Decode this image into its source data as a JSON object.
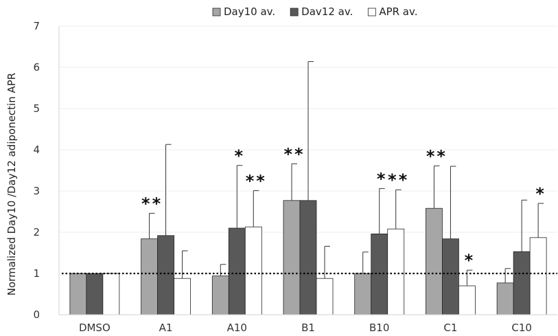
{
  "chart_data": {
    "type": "bar",
    "title": "",
    "xlabel": "",
    "ylabel": "Normalized Day10 /Day12 adiponectin APR",
    "ylim": [
      0,
      7
    ],
    "yticks": [
      0,
      1,
      2,
      3,
      4,
      5,
      6,
      7
    ],
    "categories": [
      "DMSO",
      "A1",
      "A10",
      "B1",
      "B10",
      "C1",
      "C10"
    ],
    "legend_position": "top",
    "grid": true,
    "reference_line": 1,
    "series": [
      {
        "name": "Day10 av.",
        "color": "#a6a6a6",
        "values": [
          1.0,
          1.84,
          0.94,
          2.77,
          1.0,
          2.58,
          0.77
        ],
        "error": [
          0,
          0.62,
          0.28,
          0.89,
          0.52,
          1.03,
          0.35
        ],
        "significance": [
          "",
          "**",
          "",
          "**",
          "",
          "**",
          ""
        ]
      },
      {
        "name": "Dav12 av.",
        "color": "#595959",
        "values": [
          1.0,
          1.92,
          2.1,
          2.77,
          1.96,
          1.84,
          1.53
        ],
        "error": [
          0,
          2.21,
          1.52,
          3.37,
          1.1,
          1.76,
          1.25
        ],
        "significance": [
          "",
          "",
          "*",
          "",
          "*",
          "",
          ""
        ]
      },
      {
        "name": "APR av.",
        "color": "#ffffff",
        "values": [
          1.0,
          0.88,
          2.13,
          0.88,
          2.08,
          0.7,
          1.87
        ],
        "error": [
          0,
          0.67,
          0.88,
          0.78,
          0.95,
          0.38,
          0.83
        ],
        "significance": [
          "",
          "",
          "**",
          "",
          "**",
          "*",
          "*"
        ]
      }
    ]
  }
}
